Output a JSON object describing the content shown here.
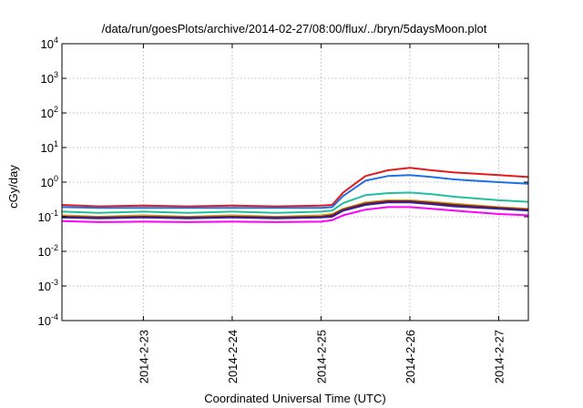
{
  "chart_data": {
    "type": "line",
    "title": "/data/run/goesPlots/archive/2014-02-27/08:00/flux/../bryn/5daysMoon.plot",
    "xlabel": "Coordinated Universal Time (UTC)",
    "ylabel": "cGy/day",
    "yscale": "log",
    "ylim": [
      0.0001,
      10000
    ],
    "xlim": [
      "2014-02-22 02:00",
      "2014-02-27 08:00"
    ],
    "grid": true,
    "legend": "none",
    "x_ticks": [
      "2014-2-23",
      "2014-2-24",
      "2014-2-25",
      "2014-2-26",
      "2014-2-27"
    ],
    "y_ticks": [
      {
        "base": "10",
        "exp": "-4"
      },
      {
        "base": "10",
        "exp": "-3"
      },
      {
        "base": "10",
        "exp": "-2"
      },
      {
        "base": "10",
        "exp": "-1"
      },
      {
        "base": "10",
        "exp": "0"
      },
      {
        "base": "10",
        "exp": "1"
      },
      {
        "base": "10",
        "exp": "2"
      },
      {
        "base": "10",
        "exp": "3"
      },
      {
        "base": "10",
        "exp": "4"
      }
    ],
    "x": [
      "2014-02-22 02:00",
      "2014-02-22 12:00",
      "2014-02-23 00:00",
      "2014-02-23 12:00",
      "2014-02-24 00:00",
      "2014-02-24 12:00",
      "2014-02-25 00:00",
      "2014-02-25 03:00",
      "2014-02-25 06:00",
      "2014-02-25 12:00",
      "2014-02-25 18:00",
      "2014-02-26 00:00",
      "2014-02-26 06:00",
      "2014-02-26 12:00",
      "2014-02-27 00:00",
      "2014-02-27 08:00"
    ],
    "series": [
      {
        "color": "#e41a1c",
        "values": [
          0.22,
          0.2,
          0.21,
          0.2,
          0.21,
          0.2,
          0.21,
          0.22,
          0.5,
          1.5,
          2.2,
          2.6,
          2.2,
          1.9,
          1.6,
          1.4
        ]
      },
      {
        "color": "#1f6fe8",
        "values": [
          0.19,
          0.18,
          0.18,
          0.18,
          0.18,
          0.18,
          0.18,
          0.19,
          0.4,
          1.1,
          1.5,
          1.6,
          1.4,
          1.2,
          1.0,
          0.9
        ]
      },
      {
        "color": "#1fbf9f",
        "values": [
          0.14,
          0.13,
          0.14,
          0.13,
          0.14,
          0.13,
          0.14,
          0.15,
          0.25,
          0.42,
          0.48,
          0.5,
          0.45,
          0.38,
          0.3,
          0.27
        ]
      },
      {
        "color": "#c9a227",
        "values": [
          0.11,
          0.1,
          0.11,
          0.1,
          0.11,
          0.1,
          0.11,
          0.12,
          0.17,
          0.26,
          0.3,
          0.3,
          0.27,
          0.24,
          0.19,
          0.17
        ]
      },
      {
        "color": "#7a1f1f",
        "values": [
          0.1,
          0.095,
          0.1,
          0.095,
          0.1,
          0.095,
          0.1,
          0.11,
          0.16,
          0.24,
          0.28,
          0.28,
          0.25,
          0.22,
          0.18,
          0.16
        ]
      },
      {
        "color": "#3b1f8f",
        "values": [
          0.095,
          0.09,
          0.095,
          0.09,
          0.095,
          0.09,
          0.095,
          0.1,
          0.15,
          0.22,
          0.26,
          0.26,
          0.23,
          0.2,
          0.17,
          0.15
        ]
      },
      {
        "color": "#ff00ff",
        "values": [
          0.075,
          0.07,
          0.072,
          0.07,
          0.072,
          0.07,
          0.072,
          0.08,
          0.11,
          0.16,
          0.19,
          0.19,
          0.17,
          0.15,
          0.12,
          0.11
        ]
      }
    ]
  }
}
